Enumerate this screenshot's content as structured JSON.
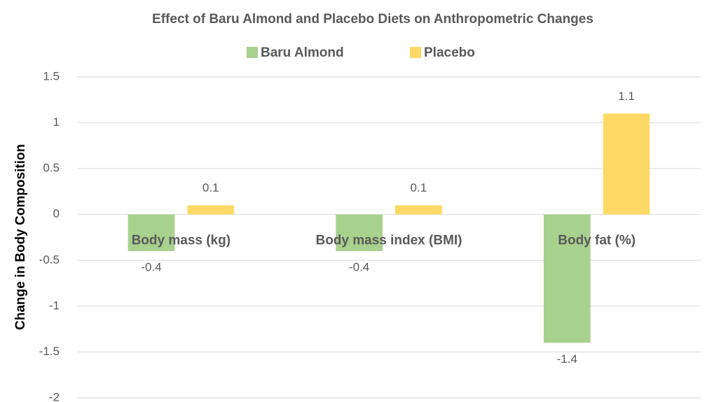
{
  "chart_data": {
    "type": "bar",
    "title": "Effect of Baru Almond and Placebo Diets on Anthropometric Changes",
    "y_label": "Change in Body Composition",
    "categories": [
      "Body mass (kg)",
      "Body mass index (BMI)",
      "Body fat (%)"
    ],
    "series": [
      {
        "name": "Baru Almond",
        "color": "#a9d18e",
        "values": [
          -0.4,
          -0.4,
          -1.4
        ]
      },
      {
        "name": "Placebo",
        "color": "#ffd966",
        "values": [
          0.1,
          0.1,
          1.1
        ]
      }
    ],
    "ylim": [
      -2,
      1.5
    ],
    "yticks": [
      1.5,
      1,
      0.5,
      0,
      -0.5,
      -1,
      -1.5,
      -2
    ],
    "grid": true,
    "legend": "top"
  }
}
